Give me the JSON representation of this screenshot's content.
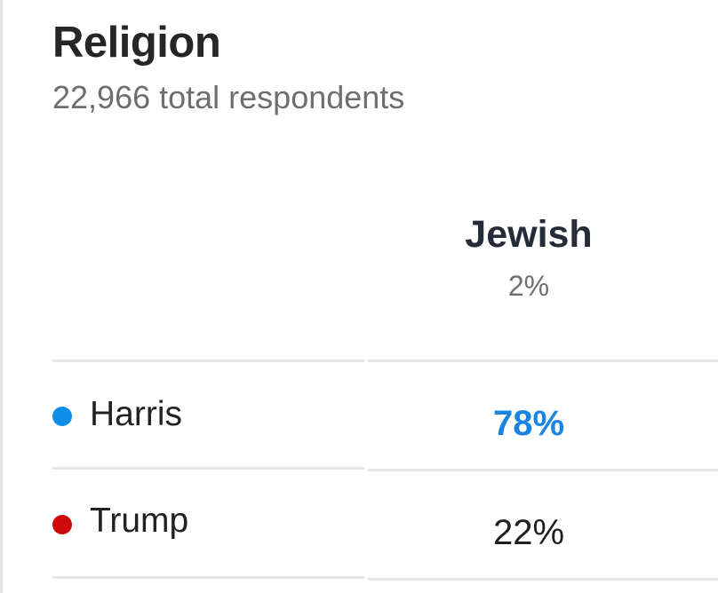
{
  "header": {
    "title": "Religion",
    "respondents": "22,966 total respondents"
  },
  "colors": {
    "harris": "#0c8ee8",
    "trump": "#cc0a0a",
    "leader_text_harris": "#1a85e0"
  },
  "chart_data": {
    "type": "table",
    "title": "Religion",
    "subtitle": "22,966 total respondents",
    "columns": [
      {
        "label": "Jewish",
        "share_label": "2%",
        "share": 2
      }
    ],
    "rows": [
      {
        "name": "Harris",
        "color": "#0c8ee8",
        "values": [
          78
        ],
        "value_labels": [
          "78%"
        ],
        "leader": true
      },
      {
        "name": "Trump",
        "color": "#cc0a0a",
        "values": [
          22
        ],
        "value_labels": [
          "22%"
        ],
        "leader": false
      }
    ]
  }
}
